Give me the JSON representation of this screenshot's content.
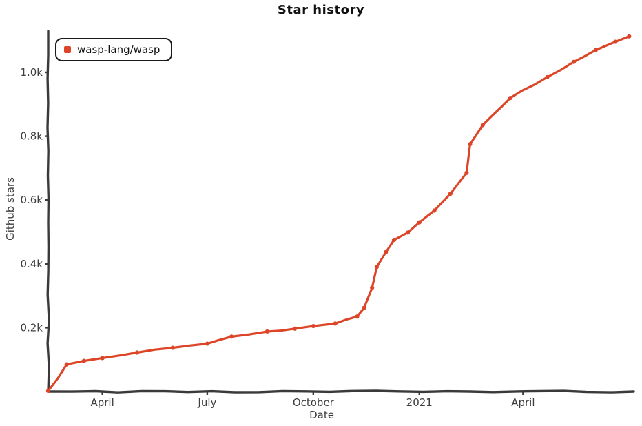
{
  "page": {
    "background": "#ffffff"
  },
  "chart_data": {
    "type": "line",
    "title": "Star history",
    "xlabel": "Date",
    "ylabel": "Github stars",
    "grid": false,
    "legend_position": "top-left",
    "axis_color": "#3a3a3a",
    "text_color": "#3d3d3d",
    "x_domain": [
      "2020-02-14",
      "2021-07-06"
    ],
    "y_domain": [
      0,
      1130
    ],
    "x_ticks": [
      {
        "date": "2020-04-01",
        "label": "April"
      },
      {
        "date": "2020-07-01",
        "label": "July"
      },
      {
        "date": "2020-10-01",
        "label": "October"
      },
      {
        "date": "2021-01-01",
        "label": "2021"
      },
      {
        "date": "2021-04-01",
        "label": "April"
      }
    ],
    "y_ticks": [
      {
        "value": 200,
        "label": "0.2k"
      },
      {
        "value": 400,
        "label": "0.4k"
      },
      {
        "value": 600,
        "label": "0.6k"
      },
      {
        "value": 800,
        "label": "0.8k"
      },
      {
        "value": 1000,
        "label": "1.0k"
      }
    ],
    "series": [
      {
        "name": "wasp-lang/wasp",
        "color": "#dd4528",
        "points": [
          [
            "2020-02-14",
            2
          ],
          [
            "2020-03-01",
            85
          ],
          [
            "2020-03-16",
            96
          ],
          [
            "2020-04-01",
            105
          ],
          [
            "2020-05-01",
            122
          ],
          [
            "2020-06-01",
            137
          ],
          [
            "2020-07-01",
            150
          ],
          [
            "2020-07-22",
            172
          ],
          [
            "2020-08-22",
            188
          ],
          [
            "2020-09-15",
            197
          ],
          [
            "2020-10-01",
            205
          ],
          [
            "2020-10-20",
            213
          ],
          [
            "2020-11-08",
            235
          ],
          [
            "2020-11-14",
            262
          ],
          [
            "2020-11-21",
            325
          ],
          [
            "2020-11-25",
            390
          ],
          [
            "2020-12-03",
            437
          ],
          [
            "2020-12-10",
            475
          ],
          [
            "2020-12-22",
            498
          ],
          [
            "2021-01-01",
            530
          ],
          [
            "2021-01-14",
            567
          ],
          [
            "2021-01-28",
            620
          ],
          [
            "2021-02-11",
            685
          ],
          [
            "2021-02-14",
            775
          ],
          [
            "2021-02-25",
            835
          ],
          [
            "2021-03-21",
            920
          ],
          [
            "2021-04-22",
            985
          ],
          [
            "2021-05-15",
            1033
          ],
          [
            "2021-06-03",
            1070
          ],
          [
            "2021-06-20",
            1096
          ],
          [
            "2021-07-02",
            1113
          ]
        ]
      }
    ]
  }
}
